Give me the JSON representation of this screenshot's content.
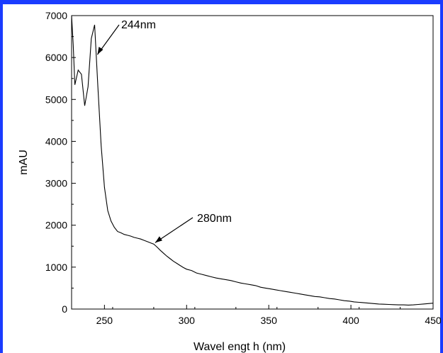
{
  "chart_data": {
    "type": "line",
    "xlabel": "Wavel engt h  (nm)",
    "ylabel": "mAU",
    "xlim": [
      230,
      450
    ],
    "ylim": [
      0,
      7000
    ],
    "x_ticks": [
      250,
      300,
      350,
      400,
      450
    ],
    "y_ticks": [
      0,
      1000,
      2000,
      3000,
      4000,
      5000,
      6000,
      7000
    ],
    "grid": false,
    "series": [
      {
        "x": [
          230,
          231,
          232,
          234,
          236,
          238,
          240,
          242,
          244,
          246,
          248,
          250,
          252,
          254,
          256,
          258,
          260,
          262,
          264,
          266,
          268,
          270,
          272,
          274,
          276,
          278,
          280,
          282,
          284,
          286,
          288,
          290,
          292,
          294,
          296,
          298,
          300,
          303,
          306,
          309,
          312,
          315,
          318,
          321,
          324,
          327,
          330,
          333,
          336,
          339,
          342,
          345,
          348,
          351,
          354,
          357,
          360,
          363,
          366,
          369,
          372,
          375,
          378,
          381,
          384,
          387,
          390,
          393,
          396,
          399,
          402,
          405,
          408,
          411,
          414,
          417,
          420,
          423,
          426,
          429,
          432,
          435,
          438,
          441,
          444,
          447,
          450
        ],
        "y": [
          7000,
          6300,
          5350,
          5700,
          5600,
          4850,
          5300,
          6450,
          6780,
          5300,
          3900,
          2900,
          2350,
          2100,
          1950,
          1850,
          1820,
          1780,
          1760,
          1740,
          1710,
          1690,
          1670,
          1640,
          1610,
          1580,
          1550,
          1480,
          1400,
          1330,
          1260,
          1200,
          1140,
          1090,
          1040,
          990,
          950,
          920,
          860,
          830,
          800,
          770,
          740,
          720,
          700,
          680,
          650,
          620,
          600,
          580,
          560,
          520,
          500,
          480,
          460,
          440,
          420,
          400,
          380,
          360,
          340,
          320,
          300,
          290,
          270,
          250,
          240,
          220,
          200,
          190,
          170,
          160,
          150,
          140,
          130,
          120,
          115,
          110,
          105,
          100,
          100,
          95,
          100,
          110,
          120,
          130,
          140
        ]
      }
    ],
    "annotations": [
      {
        "text": "244nm",
        "x": 244,
        "y": 6780
      },
      {
        "text": "280nm",
        "x": 280,
        "y": 1550
      }
    ]
  }
}
